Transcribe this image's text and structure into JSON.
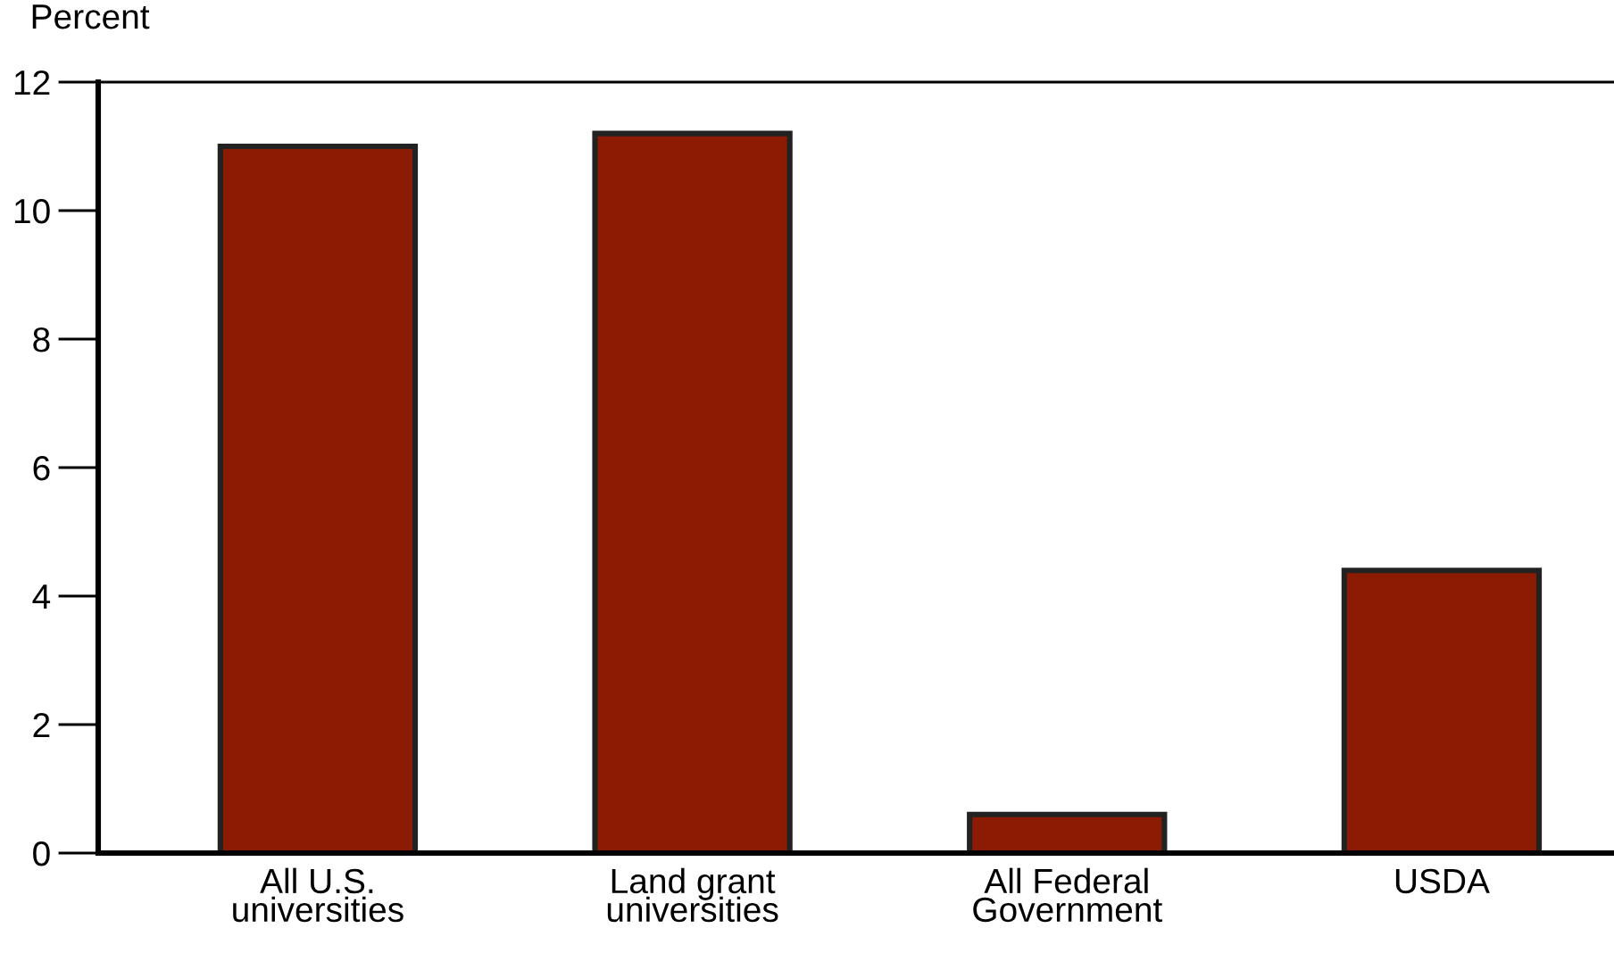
{
  "chart_data": {
    "type": "bar",
    "ylabel": "Percent",
    "categories": [
      "All U.S.\nuniversities",
      "Land grant\nuniversities",
      "All Federal\nGovernment",
      "USDA"
    ],
    "values": [
      11.0,
      11.2,
      0.6,
      4.4
    ],
    "color": "#8b1c03",
    "ylim": [
      0,
      12
    ],
    "yticks": [
      0,
      2,
      4,
      6,
      8,
      10,
      12
    ],
    "grid": false
  }
}
